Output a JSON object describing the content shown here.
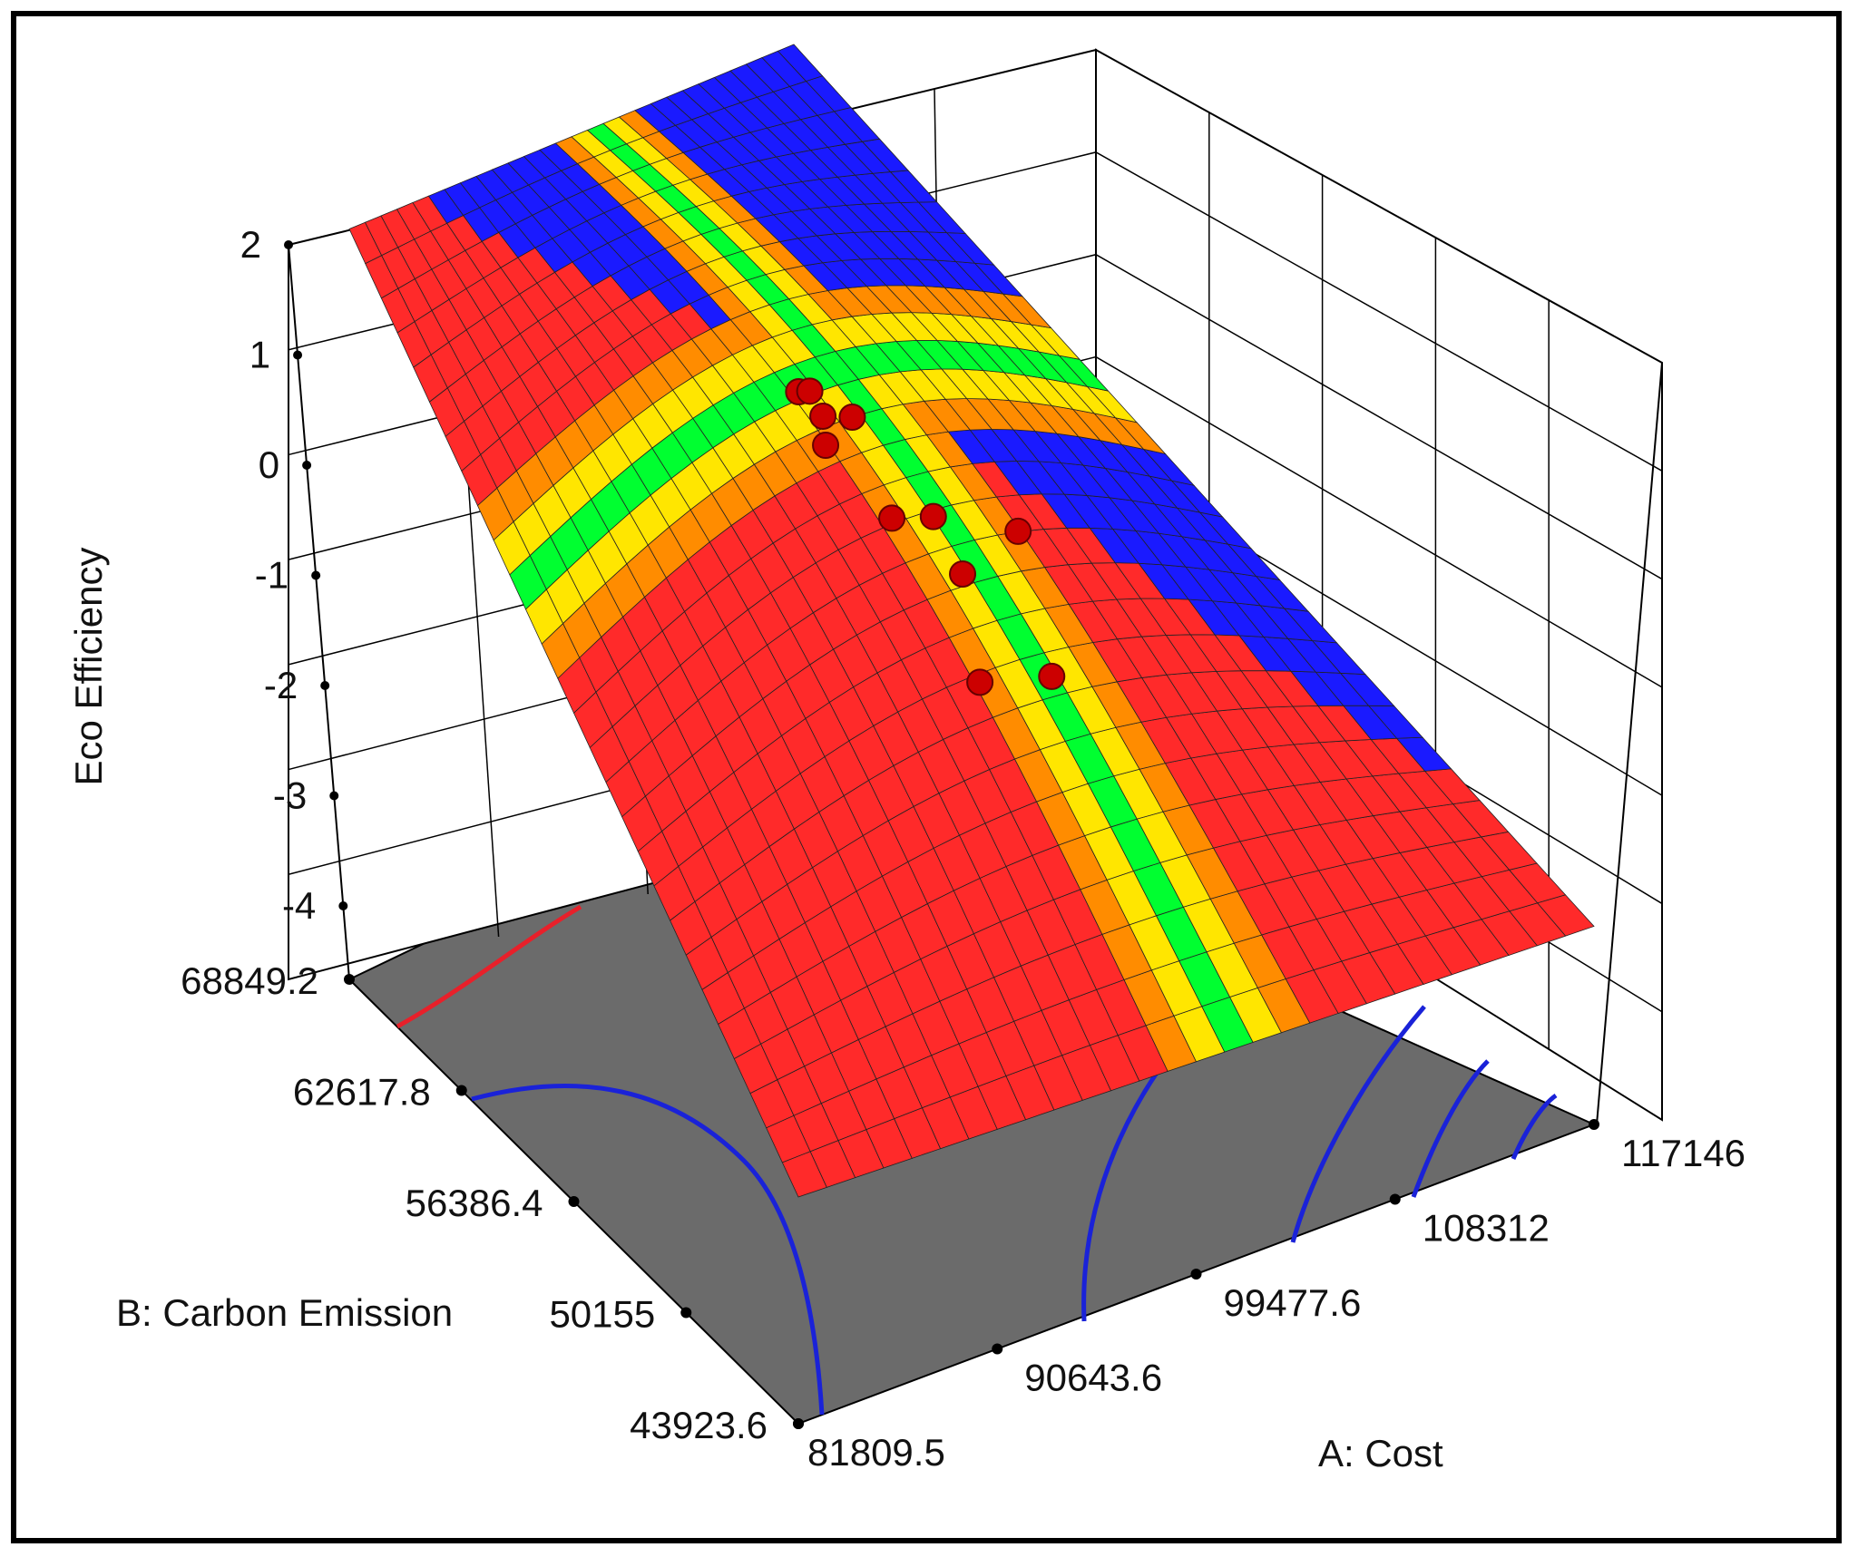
{
  "chart_data": {
    "type": "surface",
    "zlabel": "Eco Efficiency",
    "xlabel": "A: Cost",
    "ylabel": "B: Carbon Emission",
    "x_ticks": [
      "81809.5",
      "90643.6",
      "99477.6",
      "108312",
      "117146"
    ],
    "y_ticks": [
      "43923.6",
      "50155",
      "56386.4",
      "62617.8",
      "68849.2"
    ],
    "z_ticks": [
      "2",
      "1",
      "0",
      "-1",
      "-2",
      "-3",
      "-4"
    ],
    "xlim": [
      81809.5,
      117146
    ],
    "ylim": [
      43923.6,
      68849.2
    ],
    "zlim": [
      -4,
      2
    ],
    "grid": true,
    "surface_corners": {
      "cost_min_emission_max": 1.5,
      "cost_max_emission_max": 1.2,
      "cost_min_emission_min": -4.0,
      "cost_max_emission_min": -4.3
    },
    "design_points": [
      {
        "cost": 99000,
        "emission": 58500,
        "eco": 0.2
      },
      {
        "cost": 99500,
        "emission": 59800,
        "eco": 0.2
      },
      {
        "cost": 100500,
        "emission": 60000,
        "eco": 0.1
      },
      {
        "cost": 100000,
        "emission": 58000,
        "eco": 0.2
      },
      {
        "cost": 97000,
        "emission": 57000,
        "eco": 0.3
      },
      {
        "cost": 98000,
        "emission": 55000,
        "eco": -0.2
      },
      {
        "cost": 101000,
        "emission": 55500,
        "eco": -0.5
      },
      {
        "cost": 103500,
        "emission": 54000,
        "eco": -0.6
      },
      {
        "cost": 98500,
        "emission": 52500,
        "eco": -0.4
      },
      {
        "cost": 100500,
        "emission": 50500,
        "eco": -1.3
      },
      {
        "cost": 97500,
        "emission": 51000,
        "eco": -1.2
      }
    ],
    "colors": {
      "high": "#ff2a2a",
      "mid": "#00ff30",
      "low": "#1a1aff",
      "floor": "#6b6b6b",
      "contour_low": "#1a22d8",
      "contour_high": "#e8202a",
      "point": "#cc0000"
    }
  }
}
